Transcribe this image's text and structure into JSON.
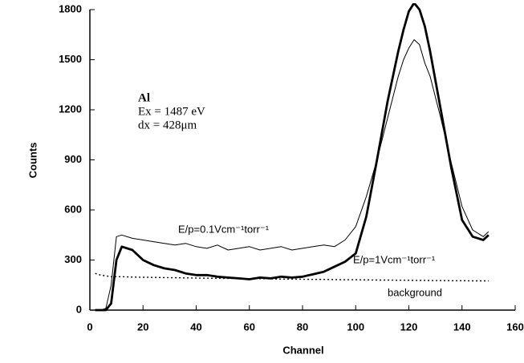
{
  "chart_data": {
    "type": "line",
    "xlabel": "Channel",
    "ylabel": "Counts",
    "annotations": [
      "Al",
      "Ex = 1487 eV",
      "dx = 428μm"
    ],
    "x": [
      2,
      4,
      6,
      8,
      10,
      12,
      16,
      20,
      24,
      28,
      32,
      36,
      40,
      44,
      48,
      52,
      56,
      60,
      64,
      68,
      72,
      76,
      80,
      84,
      88,
      92,
      96,
      100,
      104,
      108,
      112,
      116,
      118,
      120,
      122,
      124,
      126,
      128,
      132,
      136,
      140,
      144,
      148,
      150
    ],
    "series": [
      {
        "name": "E/p=0.1Vcm⁻¹torr⁻¹",
        "color": "#000000",
        "values": [
          0,
          0,
          10,
          150,
          440,
          450,
          430,
          420,
          410,
          400,
          390,
          400,
          380,
          370,
          390,
          360,
          370,
          380,
          360,
          370,
          380,
          360,
          370,
          380,
          390,
          380,
          420,
          500,
          680,
          900,
          1150,
          1400,
          1500,
          1570,
          1620,
          1590,
          1480,
          1400,
          1150,
          880,
          620,
          480,
          440,
          470
        ]
      },
      {
        "name": "E/p=1Vcm⁻¹torr⁻¹",
        "color": "#000000",
        "values": [
          0,
          0,
          0,
          40,
          300,
          380,
          360,
          300,
          270,
          250,
          240,
          220,
          210,
          210,
          200,
          195,
          190,
          185,
          195,
          190,
          200,
          195,
          200,
          215,
          230,
          260,
          290,
          340,
          560,
          900,
          1250,
          1550,
          1680,
          1790,
          1840,
          1800,
          1700,
          1550,
          1200,
          850,
          540,
          440,
          420,
          450
        ]
      },
      {
        "name": "background",
        "color": "#000000",
        "values": [
          220,
          210,
          205,
          200,
          200,
          200,
          198,
          197,
          196,
          195,
          194,
          193,
          192,
          191,
          190,
          190,
          189,
          188,
          188,
          187,
          186,
          186,
          185,
          184,
          184,
          183,
          182,
          182,
          181,
          180,
          180,
          179,
          179,
          179,
          178,
          178,
          178,
          177,
          177,
          176,
          176,
          175,
          175,
          175
        ]
      }
    ],
    "xlim": [
      0,
      160
    ],
    "xticks": [
      0,
      20,
      40,
      60,
      80,
      100,
      120,
      140,
      160
    ],
    "ylim": [
      0,
      1800
    ],
    "yticks": [
      0,
      300,
      600,
      900,
      1200,
      1500,
      1800
    ]
  }
}
